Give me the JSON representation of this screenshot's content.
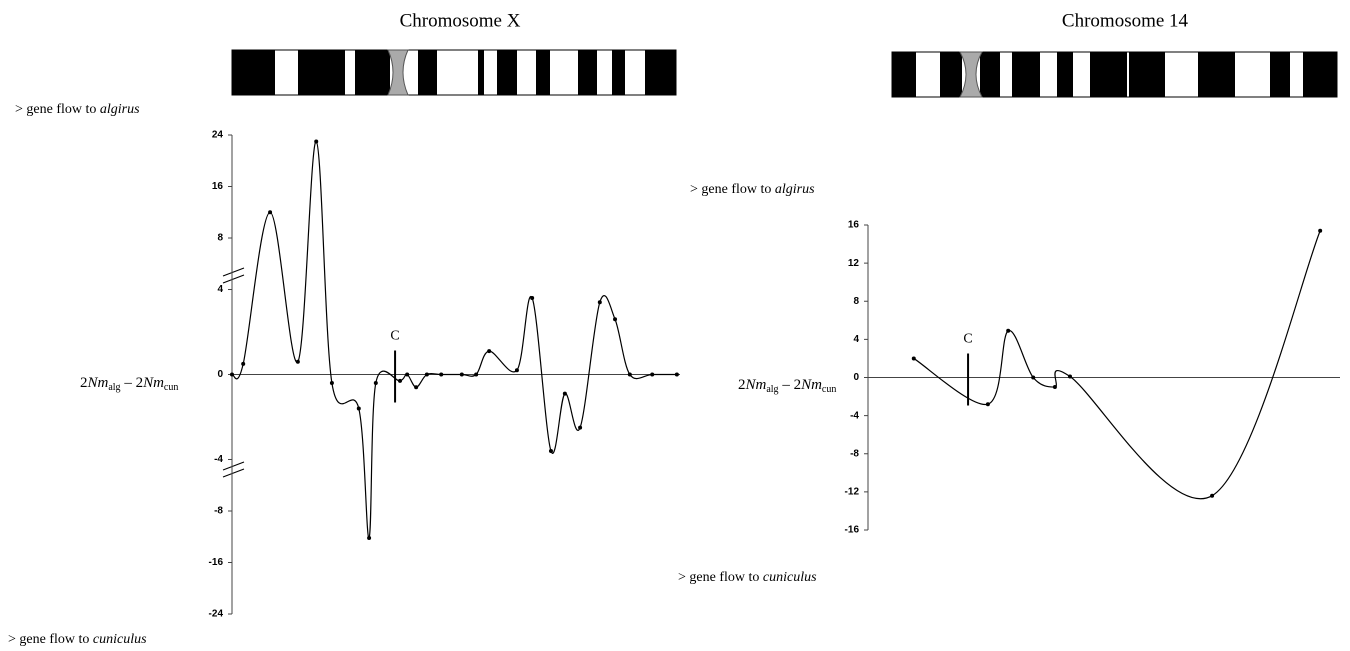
{
  "chart_data": [
    {
      "type": "line",
      "title": "Chromosome X",
      "annotations": {
        "top": [
          "> gene flow to ",
          "algirus"
        ],
        "bottom": [
          "> gene flow to ",
          "cuniculus"
        ],
        "centromere": {
          "label": "C",
          "x": 36.4
        }
      },
      "ylabel": [
        "2",
        "Nm",
        "alg",
        " – 2",
        "Nm",
        "cun"
      ],
      "x": [
        0,
        2.5,
        8.5,
        14.7,
        18.8,
        22.3,
        28.3,
        30.6,
        32.1,
        37.5,
        39.1,
        41.1,
        43.5,
        46.7,
        51.3,
        54.5,
        57.4,
        63.6,
        67.0,
        71.2,
        74.3,
        77.7,
        82.1,
        85.5,
        88.8,
        93.8,
        99.3
      ],
      "series": [
        {
          "color": "#000000",
          "values": [
            0,
            0.5,
            12,
            0.6,
            23,
            -0.4,
            -1.6,
            -12.2,
            -0.4,
            -0.3,
            0,
            -0.6,
            0,
            0,
            0,
            0,
            1.1,
            0.2,
            3.6,
            -3.6,
            -0.9,
            -2.5,
            3.4,
            2.6,
            0,
            0,
            0
          ]
        }
      ],
      "xlim": [
        0,
        100
      ],
      "ylim": [
        -24,
        24
      ],
      "yticks": [
        24,
        16,
        8,
        4,
        0,
        -4,
        -8,
        -16,
        -24
      ],
      "axis_break": true,
      "grid": false
    },
    {
      "type": "line",
      "title": "Chromosome 14",
      "annotations": {
        "top": [
          "> gene flow to ",
          "algirus"
        ],
        "bottom": [
          "> gene flow to ",
          "cuniculus"
        ],
        "centromere": {
          "label": "C",
          "x": 21.2
        }
      },
      "ylabel": [
        "2",
        "Nm",
        "alg",
        " – 2",
        "Nm",
        "cun"
      ],
      "x": [
        9.7,
        25.4,
        29.7,
        35.0,
        39.6,
        42.8,
        72.9,
        95.8
      ],
      "series": [
        {
          "color": "#000000",
          "values": [
            2,
            -2.8,
            4.9,
            0,
            -1,
            0.1,
            -12.4,
            15.4
          ]
        }
      ],
      "xlim": [
        0,
        100
      ],
      "ylim": [
        -16,
        16
      ],
      "yticks": [
        16,
        12,
        8,
        4,
        0,
        -4,
        -8,
        -12,
        -16
      ],
      "axis_break": false,
      "grid": false
    }
  ]
}
